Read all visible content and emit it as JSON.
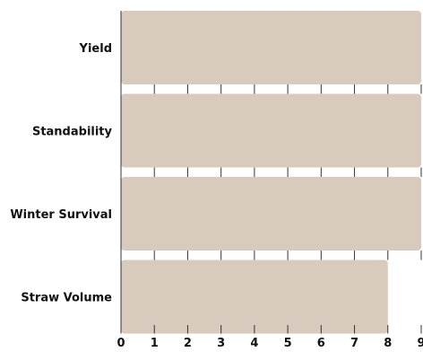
{
  "chart_data": {
    "type": "bar",
    "orientation": "horizontal",
    "categories": [
      "Yield",
      "Standability",
      "Winter Survival",
      "Straw Volume"
    ],
    "values": [
      9,
      9,
      9,
      8
    ],
    "xlim": [
      0,
      9
    ],
    "xticks": [
      "0",
      "1",
      "2",
      "3",
      "4",
      "5",
      "6",
      "7",
      "8",
      "9"
    ],
    "grid": false,
    "bar_color": "#d8cbbd",
    "axis_color": "#333333"
  }
}
